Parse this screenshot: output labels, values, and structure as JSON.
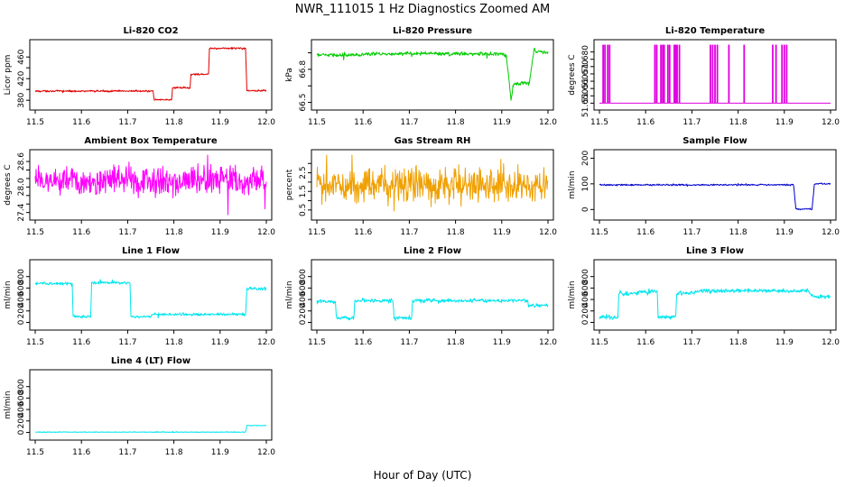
{
  "figure": {
    "title": "NWR_111015  1 Hz Diagnostics Zoomed AM",
    "xlabel": "Hour of Day (UTC)"
  },
  "chart_data": [
    {
      "type": "line",
      "title": "Li-820 CO2",
      "xlabel": "",
      "ylabel": "Licor ppm",
      "color": "#e00000",
      "xlim": [
        11.5,
        12.0
      ],
      "ylim": [
        372,
        482
      ],
      "xticks": [
        11.5,
        11.6,
        11.7,
        11.8,
        11.9,
        12.0
      ],
      "xtick_labels": [
        "11.5",
        "11.6",
        "11.7",
        "11.8",
        "11.9",
        "12.0"
      ],
      "yticks": [
        380,
        400,
        420,
        440,
        460
      ],
      "ytick_labels": [
        "380",
        "",
        "420",
        "",
        "460"
      ],
      "noise": 0.8,
      "series": [
        {
          "x": [
            11.5,
            11.755,
            11.757,
            11.795,
            11.797,
            11.835,
            11.837,
            11.875,
            11.877,
            11.955,
            11.958,
            12.0
          ],
          "y": [
            397,
            397,
            381,
            381,
            403,
            403,
            428,
            428,
            476,
            476,
            398,
            398
          ]
        }
      ]
    },
    {
      "type": "line",
      "title": "Li-820 Pressure",
      "xlabel": "",
      "ylabel": "kPa",
      "color": "#00cc00",
      "xlim": [
        11.5,
        12.0
      ],
      "ylim": [
        66.48,
        67.02
      ],
      "xticks": [
        11.5,
        11.6,
        11.7,
        11.8,
        11.9,
        12.0
      ],
      "xtick_labels": [
        "11.5",
        "11.6",
        "11.7",
        "11.8",
        "11.9",
        "12.0"
      ],
      "yticks": [
        66.5,
        66.65,
        66.8,
        66.95
      ],
      "ytick_labels": [
        "66.5",
        "",
        "66.8",
        ""
      ],
      "noise": 0.008,
      "series": [
        {
          "x": [
            11.5,
            11.6,
            11.7,
            11.8,
            11.9,
            11.91,
            11.92,
            11.925,
            11.93,
            11.96,
            11.97,
            11.975,
            11.98,
            12.0
          ],
          "y": [
            66.93,
            66.935,
            66.945,
            66.94,
            66.94,
            66.92,
            66.53,
            66.66,
            66.67,
            66.68,
            66.99,
            66.96,
            66.96,
            66.955
          ]
        }
      ]
    },
    {
      "type": "line",
      "title": "Li-820 Temperature",
      "xlabel": "",
      "ylabel": "degrees C",
      "color": "#e000e0",
      "xlim": [
        11.5,
        12.0
      ],
      "ylim": [
        51.649,
        51.6897
      ],
      "xticks": [
        11.5,
        11.6,
        11.7,
        11.8,
        11.9,
        12.0
      ],
      "xtick_labels": [
        "11.5",
        "11.6",
        "11.7",
        "11.8",
        "11.9",
        "12.0"
      ],
      "yticks": [
        51.65,
        51.655,
        51.66,
        51.665,
        51.67,
        51.675,
        51.68,
        51.685
      ],
      "ytick_labels": [
        "51.650",
        "",
        "51.660",
        "",
        "51.670",
        "",
        "51.680",
        ""
      ],
      "noise": 0,
      "baseline": 51.65,
      "spike_value": 51.6897,
      "spikes": [
        11.508,
        11.512,
        11.518,
        11.522,
        11.62,
        11.624,
        11.633,
        11.637,
        11.64,
        11.648,
        11.652,
        11.662,
        11.665,
        11.668,
        11.673,
        11.74,
        11.745,
        11.75,
        11.755,
        11.78,
        11.813,
        11.875,
        11.882,
        11.895,
        11.9,
        11.905
      ]
    },
    {
      "type": "line",
      "title": "Ambient Box Temperature",
      "xlabel": "",
      "ylabel": "degrees C",
      "color": "#ff00ff",
      "xlim": [
        11.5,
        12.0
      ],
      "ylim": [
        27.35,
        28.75
      ],
      "xticks": [
        11.5,
        11.6,
        11.7,
        11.8,
        11.9,
        12.0
      ],
      "xtick_labels": [
        "11.5",
        "11.6",
        "11.7",
        "11.8",
        "11.9",
        "12.0"
      ],
      "yticks": [
        27.4,
        27.6,
        27.8,
        28.0,
        28.2,
        28.4,
        28.6
      ],
      "ytick_labels": [
        "27.4",
        "",
        "",
        "28.0",
        "",
        "",
        "28.6"
      ],
      "noise": 0.17,
      "series": [
        {
          "x": [
            11.5,
            12.0
          ],
          "y": [
            28.15,
            28.15
          ]
        }
      ]
    },
    {
      "type": "line",
      "title": "Gas Stream RH",
      "xlabel": "",
      "ylabel": "percent",
      "color": "#f0a000",
      "xlim": [
        11.5,
        12.0
      ],
      "ylim": [
        0.25,
        3.45
      ],
      "xticks": [
        11.5,
        11.6,
        11.7,
        11.8,
        11.9,
        12.0
      ],
      "xtick_labels": [
        "11.5",
        "11.6",
        "11.7",
        "11.8",
        "11.9",
        "12.0"
      ],
      "yticks": [
        0.5,
        1.0,
        1.5,
        2.0,
        2.5,
        3.0
      ],
      "ytick_labels": [
        "0.5",
        "",
        "1.5",
        "",
        "2.5",
        ""
      ],
      "noise": 0.45,
      "series": [
        {
          "x": [
            11.5,
            12.0
          ],
          "y": [
            1.85,
            1.85
          ]
        }
      ]
    },
    {
      "type": "line",
      "title": "Sample Flow",
      "xlabel": "",
      "ylabel": "ml/min",
      "color": "#0000cc",
      "xlim": [
        11.5,
        12.0
      ],
      "ylim": [
        -20,
        212
      ],
      "xticks": [
        11.5,
        11.6,
        11.7,
        11.8,
        11.9,
        12.0
      ],
      "xtick_labels": [
        "11.5",
        "11.6",
        "11.7",
        "11.8",
        "11.9",
        "12.0"
      ],
      "yticks": [
        0,
        100,
        200
      ],
      "ytick_labels": [
        "0",
        "100",
        "200"
      ],
      "noise": 1.5,
      "series": [
        {
          "x": [
            11.5,
            11.92,
            11.925,
            11.96,
            11.965,
            12.0
          ],
          "y": [
            96,
            96,
            2,
            2,
            100,
            100
          ]
        }
      ]
    },
    {
      "type": "line",
      "title": "Line 1 Flow",
      "xlabel": "",
      "ylabel": "ml/min",
      "color": "#00e5ee",
      "xlim": [
        11.5,
        12.0
      ],
      "ylim": [
        -40,
        1000
      ],
      "xticks": [
        11.5,
        11.6,
        11.7,
        11.8,
        11.9,
        12.0
      ],
      "xtick_labels": [
        "11.5",
        "11.6",
        "11.7",
        "11.8",
        "11.9",
        "12.0"
      ],
      "yticks": [
        0,
        200,
        400,
        600,
        800
      ],
      "ytick_labels": [
        "0",
        "200",
        "400",
        "600",
        "800"
      ],
      "noise": 12,
      "series": [
        {
          "x": [
            11.5,
            11.58,
            11.582,
            11.62,
            11.622,
            11.705,
            11.707,
            11.75,
            11.752,
            11.955,
            11.958,
            12.0
          ],
          "y": [
            680,
            680,
            100,
            100,
            690,
            690,
            100,
            100,
            140,
            140,
            590,
            590
          ]
        }
      ]
    },
    {
      "type": "line",
      "title": "Line 2 Flow",
      "xlabel": "",
      "ylabel": "ml/min",
      "color": "#00e5ee",
      "xlim": [
        11.5,
        12.0
      ],
      "ylim": [
        -40,
        1000
      ],
      "xticks": [
        11.5,
        11.6,
        11.7,
        11.8,
        11.9,
        12.0
      ],
      "xtick_labels": [
        "11.5",
        "11.6",
        "11.7",
        "11.8",
        "11.9",
        "12.0"
      ],
      "yticks": [
        0,
        200,
        400,
        600,
        800
      ],
      "ytick_labels": [
        "0",
        "200",
        "400",
        "600",
        "800"
      ],
      "noise": 15,
      "series": [
        {
          "x": [
            11.5,
            11.54,
            11.542,
            11.58,
            11.582,
            11.665,
            11.667,
            11.705,
            11.707,
            11.955,
            11.958,
            12.0
          ],
          "y": [
            360,
            360,
            80,
            80,
            380,
            380,
            80,
            80,
            380,
            380,
            300,
            300
          ]
        }
      ]
    },
    {
      "type": "line",
      "title": "Line 3 Flow",
      "xlabel": "",
      "ylabel": "ml/min",
      "color": "#00e5ee",
      "xlim": [
        11.5,
        12.0
      ],
      "ylim": [
        -40,
        1000
      ],
      "xticks": [
        11.5,
        11.6,
        11.7,
        11.8,
        11.9,
        12.0
      ],
      "xtick_labels": [
        "11.5",
        "11.6",
        "11.7",
        "11.8",
        "11.9",
        "12.0"
      ],
      "yticks": [
        0,
        200,
        400,
        600,
        800
      ],
      "ytick_labels": [
        "0",
        "200",
        "400",
        "600",
        "800"
      ],
      "noise": 18,
      "series": [
        {
          "x": [
            11.5,
            11.54,
            11.542,
            11.58,
            11.582,
            11.625,
            11.627,
            11.665,
            11.667,
            11.705,
            11.707,
            11.955,
            11.958,
            12.0
          ],
          "y": [
            90,
            90,
            500,
            500,
            540,
            540,
            90,
            90,
            510,
            510,
            550,
            550,
            450,
            450
          ]
        }
      ]
    },
    {
      "type": "line",
      "title": "Line 4 (LT) Flow",
      "xlabel": "",
      "ylabel": "ml/min",
      "color": "#00e5ee",
      "xlim": [
        11.5,
        12.0
      ],
      "ylim": [
        -40,
        1000
      ],
      "xticks": [
        11.5,
        11.6,
        11.7,
        11.8,
        11.9,
        12.0
      ],
      "xtick_labels": [
        "11.5",
        "11.6",
        "11.7",
        "11.8",
        "11.9",
        "12.0"
      ],
      "yticks": [
        0,
        200,
        400,
        600,
        800
      ],
      "ytick_labels": [
        "0",
        "200",
        "400",
        "600",
        "800"
      ],
      "noise": 3,
      "series": [
        {
          "x": [
            11.5,
            11.955,
            11.958,
            12.0
          ],
          "y": [
            5,
            5,
            120,
            120
          ]
        }
      ]
    }
  ]
}
